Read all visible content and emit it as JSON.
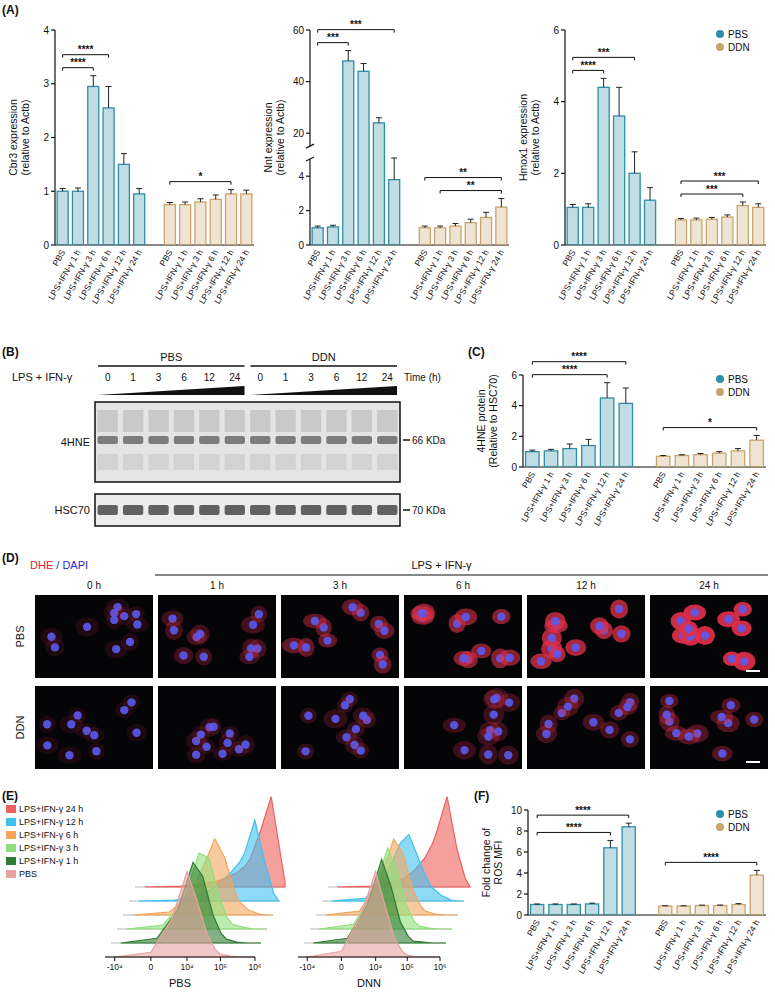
{
  "panel_labels": [
    "(A)",
    "(B)",
    "(C)",
    "(D)",
    "(E)",
    "(F)"
  ],
  "chart_data": [
    {
      "type": "bar",
      "y_label": [
        "Cbr3 expression",
        "(relative to Actb)"
      ],
      "categories": [
        "PBS",
        "LPS+IFN-γ 1 h",
        "LPS+IFN-γ 3 h",
        "LPS+IFN-γ 6 h",
        "LPS+IFN-γ 12 h",
        "LPS+IFN-γ 24 h",
        "PBS",
        "LPS+IFN-γ 1 h",
        "LPS+IFN-γ 3 h",
        "LPS+IFN-γ 6 h",
        "LPS+IFN-γ 12 h",
        "LPS+IFN-γ 24 h"
      ],
      "ylim": [
        0,
        4
      ],
      "yticks": [
        0,
        1,
        2,
        3,
        4
      ],
      "series": [
        {
          "color": "#2e8ea6",
          "values": [
            1.0,
            1.0,
            2.95,
            2.55,
            1.5,
            0.95,
            null,
            null,
            null,
            null,
            null,
            null
          ],
          "errors": [
            0.05,
            0.06,
            0.2,
            0.4,
            0.2,
            0.1,
            null,
            null,
            null,
            null,
            null,
            null
          ]
        },
        {
          "color": "#c9a46c",
          "values": [
            null,
            null,
            null,
            null,
            null,
            null,
            0.75,
            0.75,
            0.8,
            0.85,
            0.95,
            0.95
          ],
          "errors": [
            null,
            null,
            null,
            null,
            null,
            null,
            0.04,
            0.05,
            0.06,
            0.08,
            0.08,
            0.07
          ]
        }
      ],
      "annotations": [
        {
          "text": "****",
          "start": 0,
          "end": 2
        },
        {
          "text": "****",
          "start": 0,
          "end": 3
        },
        {
          "text": "*",
          "start": 6,
          "end": 10
        }
      ]
    },
    {
      "type": "bar",
      "y_label": [
        "Nnt expression",
        "(relative to Actb)"
      ],
      "categories": [
        "PBS",
        "LPS+IFN-γ 1 h",
        "LPS+IFN-γ 3 h",
        "LPS+IFN-γ 6 h",
        "LPS+IFN-γ 12 h",
        "LPS+IFN-γ 24 h",
        "PBS",
        "LPS+IFN-γ 1 h",
        "LPS+IFN-γ 3 h",
        "LPS+IFN-γ 6 h",
        "LPS+IFN-γ 12 h",
        "LPS+IFN-γ 24 h"
      ],
      "ylim": [
        0,
        60
      ],
      "yticks": [
        0,
        2,
        4,
        20,
        40,
        60
      ],
      "y_break": [
        5,
        15
      ],
      "series": [
        {
          "color": "#2e8ea6",
          "values": [
            1.0,
            1.05,
            48,
            44,
            24,
            3.8,
            null,
            null,
            null,
            null,
            null,
            null
          ],
          "errors": [
            0.1,
            0.1,
            4,
            3,
            2,
            2,
            null,
            null,
            null,
            null,
            null,
            null
          ]
        },
        {
          "color": "#c9a46c",
          "values": [
            null,
            null,
            null,
            null,
            null,
            null,
            1.0,
            1.0,
            1.1,
            1.3,
            1.6,
            2.2
          ],
          "errors": [
            null,
            null,
            null,
            null,
            null,
            null,
            0.1,
            0.1,
            0.15,
            0.2,
            0.3,
            0.5
          ]
        }
      ],
      "annotations": [
        {
          "text": "***",
          "start": 0,
          "end": 2
        },
        {
          "text": "***",
          "start": 0,
          "end": 5
        },
        {
          "text": "**",
          "start": 7,
          "end": 11
        },
        {
          "text": "**",
          "start": 6,
          "end": 11
        }
      ]
    },
    {
      "type": "bar",
      "y_label": [
        "Hmox1 expression",
        "(relative to Actb)"
      ],
      "legend": "top-right",
      "categories": [
        "PBS",
        "LPS+IFN-γ 1 h",
        "LPS+IFN-γ 3 h",
        "LPS+IFN-γ 6 h",
        "LPS+IFN-γ 12 h",
        "LPS+IFN-γ 24 h",
        "PBS",
        "LPS+IFN-γ 1 h",
        "LPS+IFN-γ 3 h",
        "LPS+IFN-γ 6 h",
        "LPS+IFN-γ 12 h",
        "LPS+IFN-γ 24 h"
      ],
      "ylim": [
        0,
        6
      ],
      "yticks": [
        0,
        2,
        4,
        6
      ],
      "series": [
        {
          "name": "PBS",
          "color": "#2e8ea6",
          "values": [
            1.05,
            1.05,
            4.4,
            3.6,
            2.0,
            1.25,
            null,
            null,
            null,
            null,
            null,
            null
          ],
          "errors": [
            0.08,
            0.1,
            0.25,
            0.8,
            0.6,
            0.35,
            null,
            null,
            null,
            null,
            null,
            null
          ]
        },
        {
          "name": "DDN",
          "color": "#c9a46c",
          "values": [
            null,
            null,
            null,
            null,
            null,
            null,
            0.7,
            0.7,
            0.72,
            0.78,
            1.1,
            1.05
          ],
          "errors": [
            null,
            null,
            null,
            null,
            null,
            null,
            0.04,
            0.05,
            0.05,
            0.06,
            0.1,
            0.1
          ]
        }
      ],
      "annotations": [
        {
          "text": "****",
          "start": 0,
          "end": 2
        },
        {
          "text": "***",
          "start": 0,
          "end": 4
        },
        {
          "text": "***",
          "start": 6,
          "end": 10
        },
        {
          "text": "***",
          "start": 6,
          "end": 11
        }
      ]
    },
    {
      "type": "bar",
      "y_label": [
        "4HNE protein",
        "(Relative to HSC70)"
      ],
      "legend": "top-right",
      "categories": [
        "PBS",
        "LPS+IFN-γ 1 h",
        "LPS+IFN-γ 3 h",
        "LPS+IFN-γ 6 h",
        "LPS+IFN-γ 12 h",
        "LPS+IFN-γ 24 h",
        "PBS",
        "LPS+IFN-γ 1 h",
        "LPS+IFN-γ 3 h",
        "LPS+IFN-γ 6 h",
        "LPS+IFN-γ 12 h",
        "LPS+IFN-γ 24 h"
      ],
      "ylim": [
        0,
        6
      ],
      "yticks": [
        0,
        2,
        4,
        6
      ],
      "series": [
        {
          "name": "PBS",
          "color": "#2e8ea6",
          "values": [
            1.0,
            1.05,
            1.2,
            1.4,
            4.5,
            4.15,
            null,
            null,
            null,
            null,
            null,
            null
          ],
          "errors": [
            0.1,
            0.1,
            0.3,
            0.4,
            1.0,
            1.0,
            null,
            null,
            null,
            null,
            null,
            null
          ]
        },
        {
          "name": "DDN",
          "color": "#c9a46c",
          "values": [
            null,
            null,
            null,
            null,
            null,
            null,
            0.7,
            0.75,
            0.8,
            0.9,
            1.05,
            1.75
          ],
          "errors": [
            null,
            null,
            null,
            null,
            null,
            null,
            0.05,
            0.05,
            0.08,
            0.1,
            0.15,
            0.3
          ]
        }
      ],
      "annotations": [
        {
          "text": "****",
          "start": 0,
          "end": 4
        },
        {
          "text": "****",
          "start": 0,
          "end": 5
        },
        {
          "text": "*",
          "start": 6,
          "end": 11
        }
      ]
    },
    {
      "type": "ridgeline",
      "log": "x",
      "x_label": "PBS",
      "tick_labels": "x",
      "legend": "left",
      "x": [
        -10000,
        0,
        3000,
        10000,
        20000,
        40000,
        70000,
        100000,
        200000,
        400000,
        700000,
        1000000
      ],
      "xlim": [
        -20000,
        1000000
      ],
      "xticks": [
        {
          "value": -10000,
          "label": "-10⁴"
        },
        0,
        {
          "value": 10000,
          "label": "10⁴"
        },
        {
          "value": 100000,
          "label": "10⁵"
        },
        {
          "value": 1000000,
          "label": "10⁶"
        }
      ],
      "ylim": [
        0,
        100
      ],
      "series": [
        {
          "name": "PBS",
          "color": "#e8a3a1",
          "values": [
            0,
            5,
            40,
            90,
            60,
            25,
            8,
            3,
            1,
            0,
            0,
            0
          ]
        },
        {
          "name": "LPS+IFN-γ 1 h",
          "color": "#2f7d32",
          "values": [
            0,
            5,
            35,
            85,
            70,
            30,
            10,
            4,
            1,
            0,
            0,
            0
          ]
        },
        {
          "name": "LPS+IFN-γ 3 h",
          "color": "#8fe07a",
          "values": [
            0,
            4,
            30,
            80,
            75,
            35,
            12,
            5,
            2,
            0,
            0,
            0
          ]
        },
        {
          "name": "LPS+IFN-γ 6 h",
          "color": "#f5a65b",
          "values": [
            0,
            3,
            20,
            55,
            80,
            60,
            30,
            15,
            5,
            1,
            0,
            0
          ]
        },
        {
          "name": "LPS+IFN-γ 12 h",
          "color": "#3fc1f0",
          "values": [
            0,
            1,
            5,
            12,
            20,
            30,
            40,
            50,
            85,
            40,
            8,
            0
          ]
        },
        {
          "name": "LPS+IFN-γ 24 h",
          "color": "#f0605d",
          "values": [
            0,
            1,
            3,
            6,
            10,
            15,
            22,
            30,
            60,
            95,
            40,
            5
          ]
        }
      ]
    },
    {
      "type": "ridgeline",
      "log": "x",
      "x_label": "DNN",
      "tick_labels": "x",
      "x": [
        -10000,
        0,
        3000,
        10000,
        20000,
        40000,
        70000,
        100000,
        200000,
        400000,
        700000,
        1000000
      ],
      "xlim": [
        -20000,
        1000000
      ],
      "xticks": [
        {
          "value": -10000,
          "label": "-10⁴"
        },
        0,
        {
          "value": 10000,
          "label": "10⁴"
        },
        {
          "value": 100000,
          "label": "10⁵"
        },
        {
          "value": 1000000,
          "label": "10⁶"
        }
      ],
      "ylim": [
        0,
        100
      ],
      "series": [
        {
          "color": "#e8a3a1",
          "values": [
            0,
            6,
            45,
            90,
            55,
            20,
            6,
            2,
            0,
            0,
            0,
            0
          ]
        },
        {
          "color": "#2f7d32",
          "values": [
            0,
            5,
            40,
            88,
            60,
            22,
            7,
            2,
            1,
            0,
            0,
            0
          ]
        },
        {
          "color": "#8fe07a",
          "values": [
            0,
            5,
            38,
            85,
            62,
            25,
            8,
            3,
            1,
            0,
            0,
            0
          ]
        },
        {
          "color": "#f5a65b",
          "values": [
            0,
            4,
            35,
            80,
            65,
            28,
            10,
            4,
            1,
            0,
            0,
            0
          ]
        },
        {
          "color": "#3fc1f0",
          "values": [
            0,
            3,
            25,
            60,
            70,
            45,
            25,
            15,
            6,
            1,
            0,
            0
          ]
        },
        {
          "color": "#f0605d",
          "values": [
            0,
            1,
            5,
            10,
            18,
            30,
            45,
            60,
            95,
            40,
            10,
            0
          ]
        }
      ]
    },
    {
      "type": "bar",
      "y_label": [
        "Fold change of",
        "ROS MFI"
      ],
      "legend": "top-right",
      "categories": [
        "PBS",
        "LPS+IFN-γ 1 h",
        "LPS+IFN-γ 3 h",
        "LPS+IFN-γ 6 h",
        "LPS+IFN-γ 12 h",
        "LPS+IFN-γ 24 h",
        "PBS",
        "LPS+IFN-γ 1 h",
        "LPS+IFN-γ 3 h",
        "LPS+IFN-γ 6 h",
        "LPS+IFN-γ 12 h",
        "LPS+IFN-γ 24 h"
      ],
      "ylim": [
        0,
        10
      ],
      "yticks": [
        0,
        2,
        4,
        6,
        8,
        10
      ],
      "series": [
        {
          "name": "PBS",
          "color": "#2e8ea6",
          "values": [
            1.0,
            1.0,
            1.0,
            1.05,
            6.4,
            8.4,
            null,
            null,
            null,
            null,
            null,
            null
          ],
          "errors": [
            0.05,
            0.05,
            0.05,
            0.08,
            0.7,
            0.35,
            null,
            null,
            null,
            null,
            null,
            null
          ]
        },
        {
          "name": "DDN",
          "color": "#c9a46c",
          "values": [
            null,
            null,
            null,
            null,
            null,
            null,
            0.85,
            0.85,
            0.9,
            0.9,
            1.0,
            3.8
          ],
          "errors": [
            null,
            null,
            null,
            null,
            null,
            null,
            0.03,
            0.03,
            0.04,
            0.05,
            0.08,
            0.45
          ]
        }
      ],
      "annotations": [
        {
          "text": "****",
          "start": 0,
          "end": 4
        },
        {
          "text": "****",
          "start": 0,
          "end": 5
        },
        {
          "text": "****",
          "start": 6,
          "end": 11
        }
      ]
    }
  ],
  "blot": {
    "treatment": "LPS + IFN-γ",
    "groups": [
      "PBS",
      "DDN"
    ],
    "times": [
      0,
      1,
      3,
      6,
      12,
      24
    ],
    "time_label": "Time (h)",
    "rows": [
      {
        "label": "4HNE",
        "size": "66 KDa"
      },
      {
        "label": "HSC70",
        "size": "70 KDa"
      }
    ]
  },
  "imaging": {
    "stain_label": "DHE / DAPI",
    "treatment": "LPS + IFN-γ",
    "times": [
      "0 h",
      "1 h",
      "3 h",
      "6 h",
      "12 h",
      "24 h"
    ],
    "rows": [
      "PBS",
      "DDN"
    ]
  }
}
